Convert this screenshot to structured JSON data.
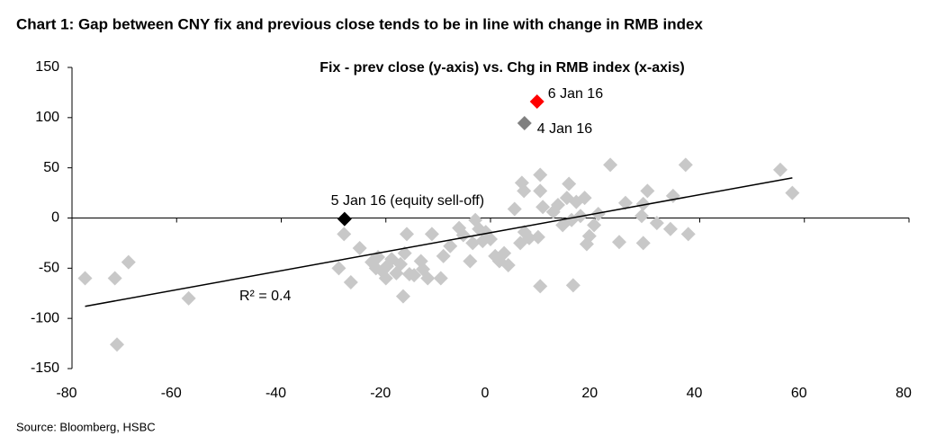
{
  "chart_data": {
    "type": "scatter",
    "title": "Chart 1: Gap between CNY fix and previous close tends to be in line with change in RMB index",
    "subtitle": "Fix - prev close (y-axis) vs. Chg in RMB index (x-axis)",
    "source": "Source: Bloomberg, HSBC",
    "xlim": [
      -80,
      80
    ],
    "xticks": [
      -80,
      -60,
      -40,
      -20,
      0,
      20,
      40,
      60,
      80
    ],
    "ylim": [
      -150,
      150
    ],
    "yticks": [
      -150,
      -100,
      -50,
      0,
      50,
      100,
      150
    ],
    "color": "#c8c8c8",
    "x": [
      -77.5,
      -71.8,
      -69.2,
      -71.4,
      -57.7,
      -28,
      -29,
      -26.7,
      -25,
      -22.7,
      -21.9,
      -21.5,
      -20.7,
      -19.8,
      -20,
      -18.9,
      -18,
      -17.2,
      -16.4,
      -15.5,
      -16.7,
      -16,
      -14.6,
      -13.3,
      -12.9,
      -12,
      -11.2,
      -9,
      -9.5,
      -7.7,
      -6,
      -5.2,
      -3.9,
      -3.4,
      -2.9,
      -2.2,
      -1.5,
      -0.9,
      0,
      0.9,
      1.7,
      2.6,
      3.4,
      4.6,
      5.7,
      6.5,
      6,
      6.4,
      7.4,
      9.1,
      9.5,
      9.5,
      10,
      9.5,
      12,
      12.9,
      13.8,
      14.6,
      15,
      15.5,
      16.4,
      17.2,
      18,
      18.4,
      18.9,
      19.8,
      20.6,
      15.8,
      22.9,
      24.6,
      25.8,
      28.9,
      29.2,
      30,
      29.2,
      31.8,
      34.4,
      34.9,
      37.3,
      37.8,
      55.4,
      57.7
    ],
    "values": [
      -60,
      -60,
      -44,
      -126,
      -80,
      -16,
      -50,
      -64,
      -30,
      -44,
      -50,
      -39,
      -53,
      -48,
      -60,
      -41,
      -55,
      -46,
      -35,
      -56,
      -78,
      -16,
      -57,
      -43,
      -51,
      -60,
      -16,
      -38,
      -60,
      -28,
      -10,
      -17,
      -43,
      -25,
      -2,
      -11,
      -23,
      -14,
      -21,
      -38,
      -43,
      -35,
      -47,
      9,
      -25,
      -14,
      35,
      27,
      -20,
      -19,
      43,
      27,
      11,
      -68,
      6,
      13,
      -7,
      20,
      34,
      -2,
      16,
      2,
      20,
      -26,
      -18,
      -7,
      4,
      -67,
      53,
      -24,
      15,
      2,
      14,
      27,
      -25,
      -5,
      -11,
      22,
      53,
      -16,
      48,
      25
    ],
    "highlights": [
      {
        "label": "6 Jan 16",
        "x": 8.9,
        "y": 116,
        "color": "#ff0000"
      },
      {
        "label": "4 Jan 16",
        "x": 6.5,
        "y": 94.5,
        "color": "#808080"
      },
      {
        "label": "5 Jan 16 (equity sell-off)",
        "x": -27.9,
        "y": -1,
        "color": "#000000"
      }
    ],
    "trendline": {
      "label": "R² = 0.4",
      "x": [
        -77.5,
        57.7
      ],
      "y": [
        -88,
        40
      ]
    }
  }
}
